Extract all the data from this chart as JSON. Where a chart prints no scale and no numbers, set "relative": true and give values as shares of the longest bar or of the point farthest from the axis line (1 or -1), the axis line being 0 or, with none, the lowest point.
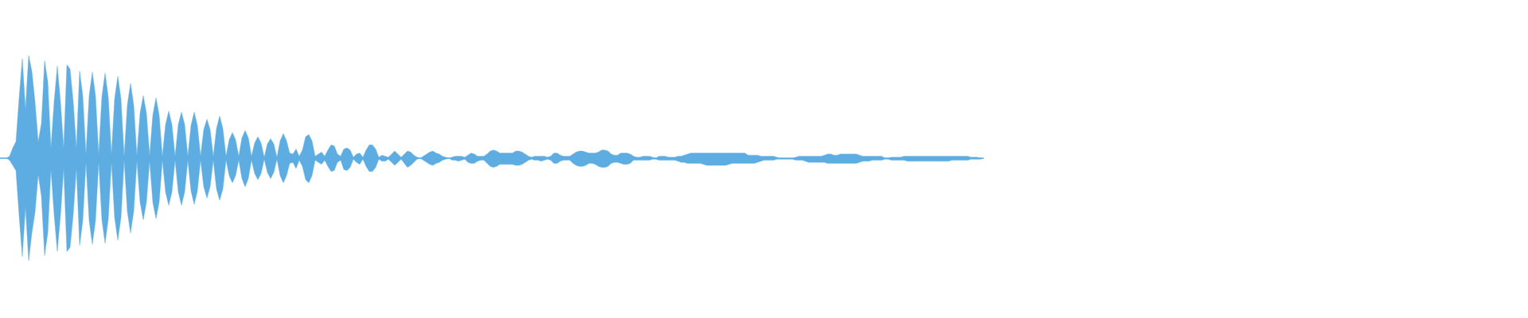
{
  "chart_data": {
    "type": "area",
    "relative": true,
    "categories": [
      null,
      null,
      null,
      null,
      null,
      null,
      null,
      null,
      null,
      null,
      null,
      null,
      null,
      null,
      null,
      null,
      null,
      null,
      null,
      null,
      null,
      null,
      null,
      null,
      null,
      null,
      null,
      null,
      null,
      null,
      null,
      null,
      null,
      null,
      null,
      null,
      null,
      null,
      null,
      null,
      null,
      null,
      null,
      null,
      null,
      null,
      null,
      null,
      null,
      null,
      null,
      null,
      null,
      null,
      null,
      null,
      null,
      null,
      null,
      null,
      null,
      null,
      null,
      null,
      null,
      null,
      null,
      null,
      null,
      null,
      null,
      null,
      null,
      null,
      null,
      null,
      null,
      null,
      null,
      null,
      null,
      null,
      null,
      null,
      null,
      null,
      null,
      null,
      null,
      null,
      null,
      null,
      null,
      null,
      null,
      null,
      null,
      null,
      null,
      null,
      null,
      null,
      null,
      null,
      null,
      null,
      null,
      null,
      null,
      null,
      null,
      null,
      null,
      null,
      null,
      null,
      null,
      null,
      null,
      null,
      null,
      null,
      null,
      null,
      null,
      null,
      null,
      null,
      null,
      null,
      null,
      null,
      null,
      null,
      null,
      null,
      null,
      null,
      null,
      null,
      null,
      null,
      null,
      null,
      null,
      null,
      null,
      null,
      null,
      null,
      null,
      null,
      null,
      null,
      null,
      null,
      null,
      null,
      null,
      null,
      null,
      null,
      null,
      null,
      null,
      null,
      null,
      null,
      null,
      null,
      null,
      null,
      null,
      null,
      null,
      null,
      null,
      null,
      null,
      null,
      null,
      null,
      null,
      null,
      null,
      null,
      null,
      null,
      null,
      null,
      null,
      null,
      null,
      null,
      null,
      null,
      null,
      null,
      null,
      null,
      null,
      null,
      null,
      null,
      null,
      null,
      null,
      null,
      null,
      null,
      null,
      null,
      null,
      null,
      null,
      null,
      null,
      null,
      null,
      null,
      null,
      null,
      null,
      null,
      null,
      null,
      null,
      null,
      null,
      null,
      null,
      null,
      null,
      null,
      null,
      null,
      null,
      null,
      null,
      null,
      null,
      null,
      null,
      null,
      null,
      null,
      null,
      null,
      null,
      null,
      null,
      null,
      null,
      null,
      null,
      null,
      null,
      null,
      null,
      null,
      null,
      null,
      null,
      null,
      null,
      null,
      null,
      null,
      null,
      null,
      null,
      null,
      null,
      null,
      null,
      null,
      null,
      null,
      null,
      null,
      null,
      null,
      null,
      null,
      null,
      null,
      null,
      null,
      null,
      null,
      null,
      null,
      null,
      null,
      null,
      null,
      null,
      null,
      null,
      null,
      null,
      null,
      null,
      null,
      null,
      null,
      null,
      null,
      null,
      null
    ],
    "series": [
      {
        "color": "#5dade2",
        "values": [
          0,
          0,
          0,
          0.02,
          0.1,
          0.16,
          0.59,
          0.97,
          0.48,
          1,
          0.85,
          0.55,
          0.16,
          0.34,
          0.95,
          0.75,
          0.1,
          0.55,
          0.9,
          0.55,
          0.1,
          0.91,
          0.87,
          0.55,
          0.1,
          0.85,
          0.61,
          0.04,
          0.61,
          0.84,
          0.61,
          0.04,
          0.6,
          0.83,
          0.6,
          0.04,
          0.58,
          0.8,
          0.58,
          0.02,
          0.52,
          0.73,
          0.52,
          0.03,
          0.44,
          0.61,
          0.44,
          0.03,
          0.42,
          0.59,
          0.42,
          0.02,
          0.33,
          0.46,
          0.33,
          0.02,
          0.33,
          0.45,
          0.33,
          0.02,
          0.32,
          0.45,
          0.32,
          0.02,
          0.28,
          0.38,
          0.28,
          0.02,
          0.29,
          0.41,
          0.29,
          0.02,
          0.18,
          0.25,
          0.18,
          0.02,
          0.2,
          0.27,
          0.2,
          0.02,
          0.15,
          0.21,
          0.15,
          0.01,
          0.14,
          0.19,
          0.14,
          0.01,
          0.17,
          0.24,
          0.17,
          0.05,
          0.04,
          0.09,
          0.02,
          0.08,
          0.21,
          0.23,
          0.17,
          0.02,
          0.04,
          0.06,
          0.02,
          0.08,
          0.13,
          0.12,
          0.04,
          0.02,
          0.09,
          0.1,
          0.08,
          0.01,
          0.04,
          0.05,
          0.01,
          0.08,
          0.13,
          0.13,
          0.09,
          0.01,
          0.03,
          0.02,
          0.01,
          0.04,
          0.07,
          0.04,
          0.01,
          0.04,
          0.07,
          0.06,
          0.03,
          0.01,
          0,
          0.02,
          0.04,
          0.06,
          0.07,
          0.05,
          0.04,
          0.02,
          0.01,
          0,
          0.01,
          0.02,
          0.02,
          0.02,
          0.01,
          0.03,
          0.05,
          0.04,
          0.02,
          0.02,
          0.02,
          0.04,
          0.07,
          0.08,
          0.07,
          0.05,
          0.05,
          0.05,
          0.05,
          0.05,
          0.07,
          0.07,
          0.06,
          0.04,
          0.02,
          0.01,
          0.02,
          0.02,
          0.02,
          0.02,
          0.01,
          0.02,
          0.05,
          0.05,
          0.03,
          0.02,
          0.02,
          0.02,
          0.04,
          0.06,
          0.07,
          0.07,
          0.06,
          0.05,
          0.05,
          0.05,
          0.06,
          0.08,
          0.08,
          0.07,
          0.04,
          0.03,
          0.03,
          0.05,
          0.05,
          0.05,
          0.04,
          0.02,
          0.01,
          0.01,
          0.02,
          0.02,
          0.02,
          0.01,
          0,
          0.02,
          0.02,
          0.02,
          0.01,
          0.01,
          0.01,
          0.02,
          0.02,
          0.03,
          0.04,
          0.05,
          0.05,
          0.05,
          0.05,
          0.05,
          0.05,
          0.05,
          0.05,
          0.05,
          0.05,
          0.05,
          0.05,
          0.05,
          0.05,
          0.05,
          0.05,
          0.05,
          0.05,
          0.03,
          0.03,
          0.03,
          0.03,
          0.02,
          0.02,
          0.02,
          0.02,
          0.02,
          0.01,
          0,
          0,
          0,
          0,
          0,
          0.01,
          0.02,
          0.02,
          0.02,
          0.02,
          0.02,
          0.02,
          0.02,
          0.02,
          0.03,
          0.04,
          0.04,
          0.03,
          0.03,
          0.04,
          0.04,
          0.04,
          0.04,
          0.04,
          0.04,
          0.03,
          0.02,
          0.02,
          0.02,
          0.02,
          0.02,
          0.02,
          0.02,
          0,
          0,
          0.01,
          0.01,
          0.01,
          0.01,
          0.02,
          0.02,
          0.02,
          0.02,
          0.02,
          0.02,
          0.02,
          0.02,
          0.02,
          0.02,
          0.02,
          0.02,
          0.02,
          0.02,
          0.02,
          0.02,
          0.02,
          0.02,
          0.02,
          0.02,
          0.02,
          0.01,
          0.01,
          0.01,
          0,
          0
        ]
      },
      {
        "color": "#5dade2",
        "values": [
          0,
          0,
          0,
          -0.02,
          -0.07,
          -0.12,
          -0.56,
          -0.96,
          -0.48,
          -1,
          -0.73,
          -0.53,
          -0.16,
          -0.37,
          -0.95,
          -0.73,
          -0.11,
          -0.55,
          -0.91,
          -0.56,
          -0.1,
          -0.91,
          -0.87,
          -0.55,
          -0.1,
          -0.85,
          -0.61,
          -0.04,
          -0.61,
          -0.84,
          -0.61,
          -0.04,
          -0.6,
          -0.83,
          -0.6,
          -0.04,
          -0.58,
          -0.8,
          -0.58,
          -0.02,
          -0.52,
          -0.73,
          -0.52,
          -0.03,
          -0.43,
          -0.6,
          -0.43,
          -0.03,
          -0.43,
          -0.59,
          -0.43,
          -0.02,
          -0.33,
          -0.46,
          -0.33,
          -0.02,
          -0.33,
          -0.46,
          -0.33,
          -0.02,
          -0.32,
          -0.45,
          -0.32,
          -0.02,
          -0.28,
          -0.39,
          -0.28,
          -0.02,
          -0.3,
          -0.41,
          -0.3,
          -0.02,
          -0.17,
          -0.24,
          -0.17,
          -0.02,
          -0.2,
          -0.28,
          -0.2,
          -0.02,
          -0.15,
          -0.21,
          -0.15,
          -0.01,
          -0.14,
          -0.2,
          -0.14,
          -0.01,
          -0.17,
          -0.24,
          -0.17,
          -0.05,
          -0.04,
          -0.1,
          -0.02,
          -0.08,
          -0.21,
          -0.24,
          -0.17,
          -0.02,
          -0.04,
          -0.06,
          -0.02,
          -0.08,
          -0.13,
          -0.12,
          -0.04,
          -0.02,
          -0.11,
          -0.12,
          -0.09,
          -0.01,
          -0.04,
          -0.06,
          -0.01,
          -0.08,
          -0.13,
          -0.13,
          -0.09,
          -0.01,
          -0.03,
          -0.03,
          -0.01,
          -0.04,
          -0.07,
          -0.04,
          -0.01,
          -0.05,
          -0.09,
          -0.07,
          -0.04,
          -0.01,
          0,
          -0.02,
          -0.04,
          -0.06,
          -0.07,
          -0.05,
          -0.04,
          -0.02,
          -0.01,
          0,
          -0.02,
          -0.02,
          -0.03,
          -0.02,
          -0.01,
          -0.04,
          -0.05,
          -0.05,
          -0.03,
          -0.02,
          -0.02,
          -0.05,
          -0.08,
          -0.09,
          -0.08,
          -0.06,
          -0.06,
          -0.06,
          -0.06,
          -0.06,
          -0.07,
          -0.07,
          -0.06,
          -0.04,
          -0.02,
          -0.01,
          -0.02,
          -0.02,
          -0.03,
          -0.02,
          -0.01,
          -0.02,
          -0.05,
          -0.05,
          -0.03,
          -0.02,
          -0.02,
          -0.02,
          -0.05,
          -0.07,
          -0.08,
          -0.08,
          -0.07,
          -0.05,
          -0.05,
          -0.06,
          -0.08,
          -0.09,
          -0.09,
          -0.08,
          -0.05,
          -0.04,
          -0.04,
          -0.05,
          -0.06,
          -0.06,
          -0.05,
          -0.02,
          -0.02,
          -0.02,
          -0.02,
          -0.02,
          -0.02,
          -0.01,
          -0.01,
          -0.02,
          -0.02,
          -0.02,
          -0.02,
          -0.02,
          -0.02,
          -0.03,
          -0.04,
          -0.04,
          -0.05,
          -0.05,
          -0.05,
          -0.05,
          -0.05,
          -0.06,
          -0.07,
          -0.07,
          -0.07,
          -0.07,
          -0.07,
          -0.07,
          -0.07,
          -0.06,
          -0.05,
          -0.05,
          -0.05,
          -0.05,
          -0.05,
          -0.05,
          -0.05,
          -0.05,
          -0.04,
          -0.03,
          -0.02,
          -0.02,
          -0.02,
          -0.02,
          -0.01,
          -0.01,
          -0.01,
          -0.01,
          -0.01,
          -0.01,
          -0.02,
          -0.02,
          -0.02,
          -0.03,
          -0.04,
          -0.04,
          -0.04,
          -0.04,
          -0.04,
          -0.04,
          -0.05,
          -0.05,
          -0.05,
          -0.05,
          -0.05,
          -0.05,
          -0.05,
          -0.05,
          -0.05,
          -0.05,
          -0.04,
          -0.03,
          -0.03,
          -0.03,
          -0.02,
          -0.02,
          -0.02,
          -0.02,
          -0.01,
          -0.01,
          -0.02,
          -0.02,
          -0.02,
          -0.02,
          -0.02,
          -0.03,
          -0.03,
          -0.03,
          -0.03,
          -0.03,
          -0.03,
          -0.03,
          -0.03,
          -0.03,
          -0.03,
          -0.03,
          -0.03,
          -0.03,
          -0.03,
          -0.02,
          -0.02,
          -0.02,
          -0.02,
          -0.02,
          -0.02,
          -0.01,
          -0.01,
          -0.01,
          -0.01,
          0
        ]
      }
    ]
  }
}
